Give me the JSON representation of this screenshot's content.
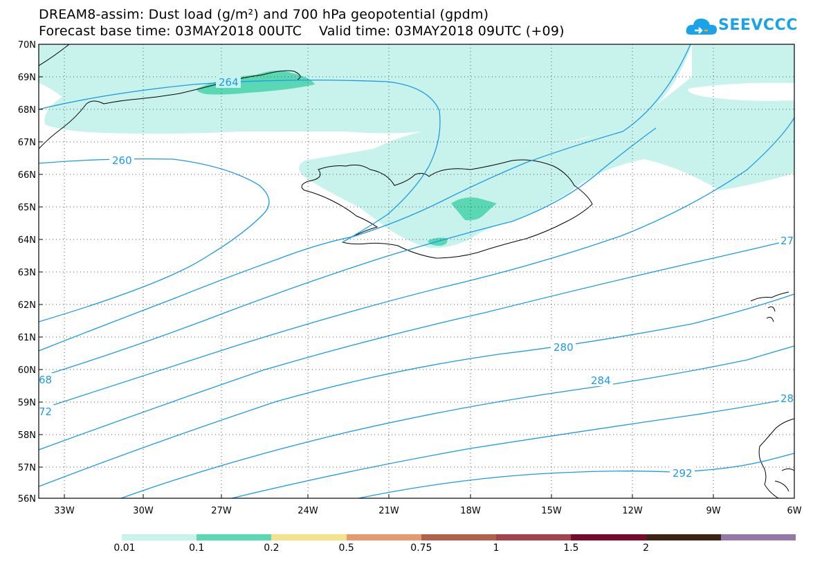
{
  "title": {
    "line1": "DREAM8-assim: Dust load (g/m²) and 700 hPa geopotential (gpdm)",
    "line2": "Forecast base time: 03MAY2018 00UTC    Valid time: 03MAY2018 09UTC (+09)"
  },
  "logo": {
    "text": "SEEVCCC",
    "icon": "cloud-icon",
    "color": "#1aa3e8"
  },
  "map": {
    "lon_range": [
      -34.5,
      -6
    ],
    "lat_range": [
      56,
      70
    ],
    "lat_labels": [
      "70N",
      "69N",
      "68N",
      "67N",
      "66N",
      "65N",
      "64N",
      "63N",
      "62N",
      "61N",
      "60N",
      "59N",
      "58N",
      "57N",
      "56N"
    ],
    "lon_labels": [
      "33W",
      "30W",
      "27W",
      "24W",
      "21W",
      "18W",
      "15W",
      "12W",
      "9W",
      "6W"
    ],
    "contour_color": "#1a9be6",
    "contour_labels": [
      {
        "text": "264"
      },
      {
        "text": "260"
      },
      {
        "text": "68"
      },
      {
        "text": "72"
      },
      {
        "text": "280"
      },
      {
        "text": "284"
      },
      {
        "text": "292"
      },
      {
        "text": "27"
      },
      {
        "text": "28"
      }
    ]
  },
  "legend": {
    "colors": [
      "#c8f2ec",
      "#5ad8b4",
      "#f4e38a",
      "#e69a70",
      "#b2624a",
      "#a4434a",
      "#7a0a2c",
      "#3e2214",
      "#9678a8"
    ],
    "labels": [
      "0.01",
      "0.1",
      "0.2",
      "0.5",
      "0.75",
      "1",
      "1.5",
      "2"
    ]
  }
}
